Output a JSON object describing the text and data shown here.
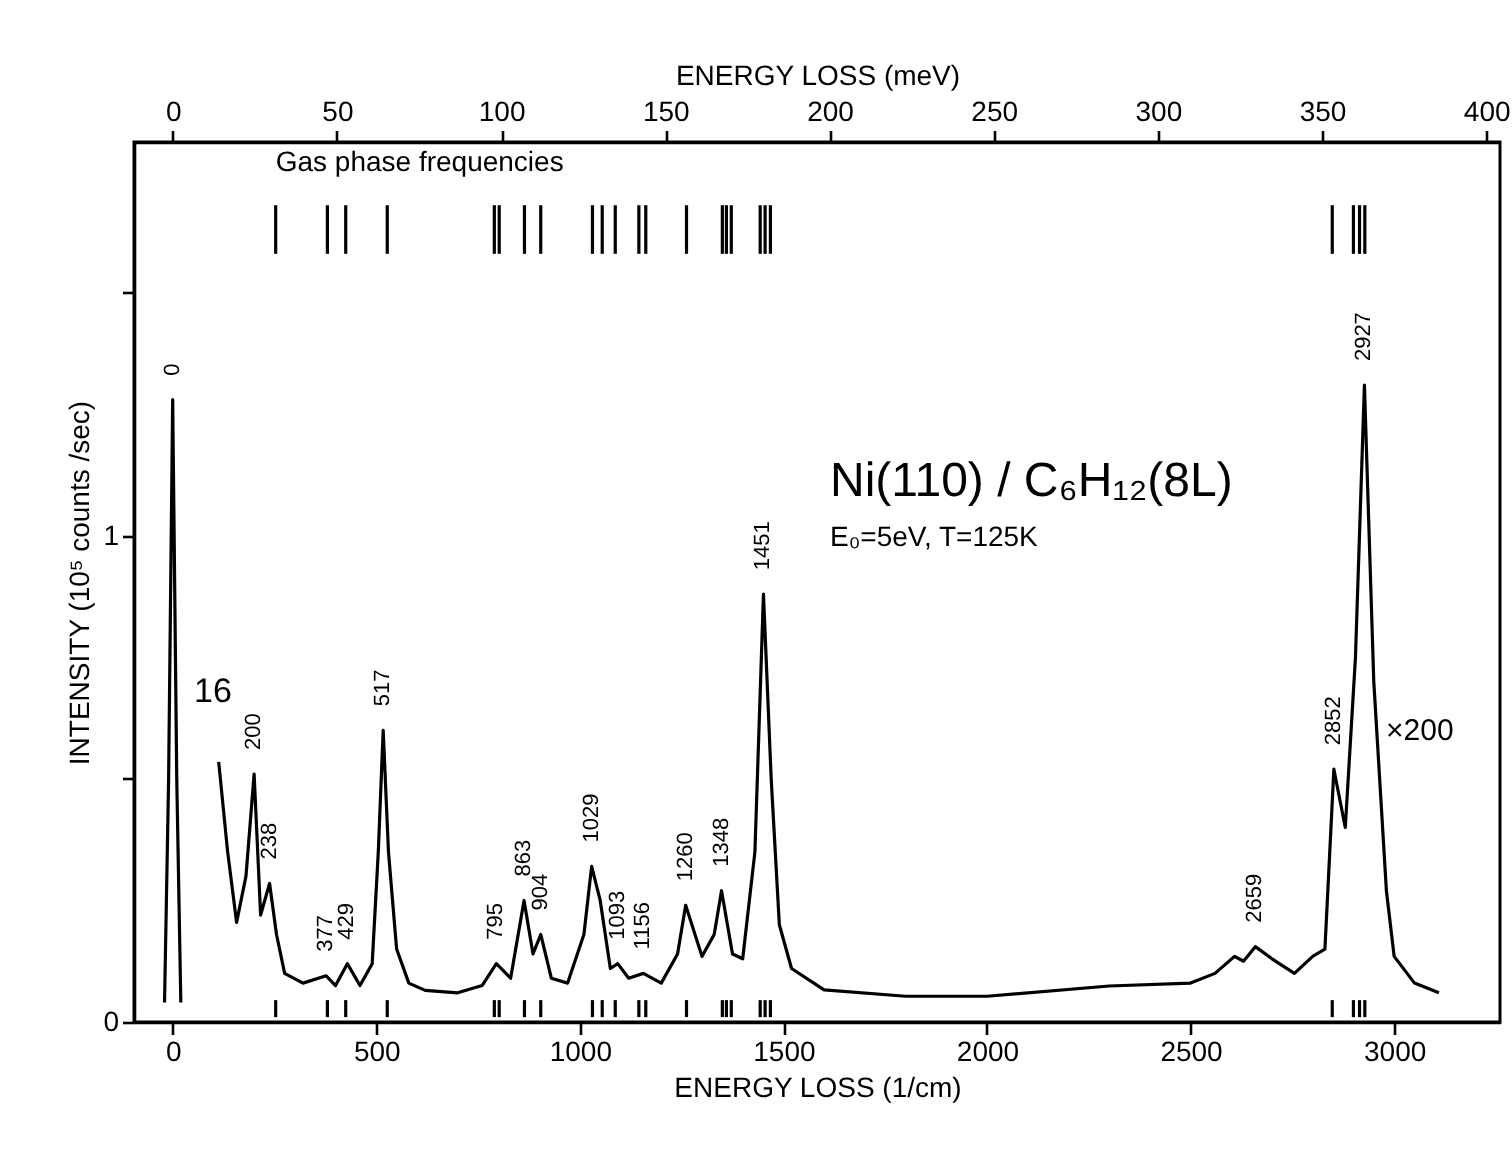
{
  "chart_data": {
    "type": "line",
    "title": "Ni(110) / C₆H₁₂(8L)",
    "subtitle": "E₀=5eV, T=125K",
    "xlabel": "ENERGY LOSS (1/cm)",
    "x2label": "ENERGY LOSS (meV)",
    "ylabel": "INTENSITY (10⁵ counts /sec)",
    "xlim": [
      -95,
      3260
    ],
    "xticks": [
      0,
      500,
      1000,
      1500,
      2000,
      2500,
      3000
    ],
    "x2lim": [
      -11.8,
      404.2
    ],
    "x2ticks": [
      0,
      50,
      100,
      150,
      200,
      250,
      300,
      350,
      400
    ],
    "ylim": [
      0,
      1.81
    ],
    "yticks": [
      0,
      {
        "value": 0.5,
        "label": null
      },
      1,
      {
        "value": 1.5,
        "label": null
      }
    ],
    "series": [
      {
        "color": "#000000",
        "x": [
          -20,
          -10,
          0,
          10,
          20,
          60,
          113,
          135,
          157,
          180,
          200,
          216,
          238,
          255,
          275,
          320,
          377,
          400,
          429,
          460,
          490,
          505,
          517,
          530,
          550,
          580,
          620,
          700,
          760,
          795,
          830,
          863,
          885,
          904,
          930,
          970,
          1010,
          1029,
          1050,
          1075,
          1093,
          1120,
          1156,
          1200,
          1240,
          1260,
          1300,
          1330,
          1348,
          1375,
          1400,
          1430,
          1451,
          1470,
          1490,
          1520,
          1600,
          1800,
          2000,
          2300,
          2500,
          2560,
          2608,
          2630,
          2659,
          2700,
          2755,
          2800,
          2830,
          2852,
          2880,
          2905,
          2927,
          2950,
          2981,
          3000,
          3050,
          3110
        ],
        "values": [
          0.04,
          0.5,
          1.28,
          0.5,
          0.04,
          null,
          0.535,
          0.35,
          0.205,
          0.3,
          0.51,
          0.22,
          0.285,
          0.18,
          0.1,
          0.08,
          0.095,
          0.075,
          0.12,
          0.075,
          0.12,
          0.35,
          0.6,
          0.35,
          0.15,
          0.08,
          0.065,
          0.06,
          0.075,
          0.12,
          0.09,
          0.25,
          0.14,
          0.18,
          0.09,
          0.08,
          0.18,
          0.32,
          0.25,
          0.11,
          0.12,
          0.09,
          0.1,
          0.08,
          0.14,
          0.24,
          0.135,
          0.18,
          0.27,
          0.14,
          0.13,
          0.35,
          0.88,
          0.5,
          0.2,
          0.11,
          0.066,
          0.053,
          0.053,
          0.074,
          0.08,
          0.1,
          0.135,
          0.125,
          0.155,
          0.13,
          0.1,
          0.135,
          0.15,
          0.52,
          0.4,
          0.75,
          1.31,
          0.7,
          0.27,
          0.135,
          0.08,
          0.06
        ]
      },
      {
        "type": "bar",
        "name": "Gas phase frequencies",
        "color": "#000000",
        "x": [
          253,
          380,
          425,
          527,
          790,
          802,
          864,
          904,
          1031,
          1055,
          1087,
          1145,
          1162,
          1262,
          1350,
          1360,
          1372,
          1443,
          1455,
          1468,
          2848,
          2900,
          2915,
          2928
        ],
        "base": [
          1.58,
          1.58,
          1.58,
          1.58,
          1.58,
          1.58,
          1.58,
          1.58,
          1.58,
          1.58,
          1.58,
          1.58,
          1.58,
          1.58,
          1.58,
          1.58,
          1.58,
          1.58,
          1.58,
          1.58,
          1.58,
          1.58,
          1.58,
          1.58
        ],
        "values": [
          0.1,
          0.1,
          0.1,
          0.1,
          0.1,
          0.1,
          0.1,
          0.1,
          0.1,
          0.1,
          0.1,
          0.1,
          0.1,
          0.1,
          0.1,
          0.1,
          0.1,
          0.1,
          0.1,
          0.1,
          0.1,
          0.1,
          0.1,
          0.1
        ]
      },
      {
        "type": "bar",
        "color": "#000000",
        "x": [
          253,
          380,
          425,
          527,
          790,
          802,
          864,
          904,
          1031,
          1055,
          1087,
          1145,
          1162,
          1262,
          1350,
          1360,
          1372,
          1443,
          1455,
          1468,
          2848,
          2900,
          2915,
          2928
        ],
        "base": [
          0.01,
          0.01,
          0.01,
          0.01,
          0.01,
          0.01,
          0.01,
          0.01,
          0.01,
          0.01,
          0.01,
          0.01,
          0.01,
          0.01,
          0.01,
          0.01,
          0.01,
          0.01,
          0.01,
          0.01,
          0.01,
          0.01,
          0.01,
          0.01
        ],
        "values": [
          0.035,
          0.035,
          0.035,
          0.035,
          0.035,
          0.035,
          0.035,
          0.035,
          0.035,
          0.035,
          0.035,
          0.035,
          0.035,
          0.035,
          0.035,
          0.035,
          0.035,
          0.035,
          0.035,
          0.035,
          0.035,
          0.035,
          0.035,
          0.035
        ]
      }
    ],
    "annotations": [
      {
        "text": "0",
        "x": 0,
        "y": 1.28
      },
      {
        "text": "200",
        "x": 200,
        "y": 0.51
      },
      {
        "text": "238",
        "x": 238,
        "y": 0.285
      },
      {
        "text": "377",
        "x": 377,
        "y": 0.095
      },
      {
        "text": "429",
        "x": 429,
        "y": 0.12
      },
      {
        "text": "517",
        "x": 517,
        "y": 0.6
      },
      {
        "text": "795",
        "x": 795,
        "y": 0.12
      },
      {
        "text": "863",
        "x": 863,
        "y": 0.25
      },
      {
        "text": "904",
        "x": 904,
        "y": 0.18
      },
      {
        "text": "1029",
        "x": 1029,
        "y": 0.32
      },
      {
        "text": "1093",
        "x": 1093,
        "y": 0.12
      },
      {
        "text": "1156",
        "x": 1156,
        "y": 0.1
      },
      {
        "text": "1260",
        "x": 1260,
        "y": 0.24
      },
      {
        "text": "1348",
        "x": 1348,
        "y": 0.27
      },
      {
        "text": "1451",
        "x": 1451,
        "y": 0.88
      },
      {
        "text": "2659",
        "x": 2659,
        "y": 0.155
      },
      {
        "text": "2852",
        "x": 2852,
        "y": 0.52
      },
      {
        "text": "2927",
        "x": 2927,
        "y": 1.31
      },
      "16",
      "×200"
    ]
  }
}
